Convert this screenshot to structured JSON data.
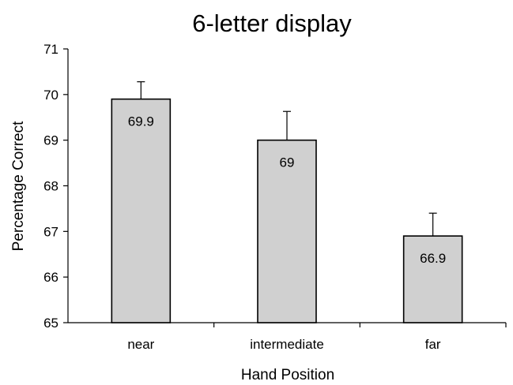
{
  "chart_data": {
    "type": "bar",
    "title": "6-letter display",
    "xlabel": "Hand Position",
    "ylabel": "Percentage Correct",
    "categories": [
      "near",
      "intermediate",
      "far"
    ],
    "values": [
      69.9,
      69,
      66.9
    ],
    "data_labels": [
      "69.9",
      "69",
      "66.9"
    ],
    "error_upper": [
      70.28,
      69.63,
      67.4
    ],
    "ylim": [
      65,
      71
    ],
    "yticks": [
      65,
      66,
      67,
      68,
      69,
      70,
      71
    ],
    "grid": false,
    "legend": "none",
    "bar_color": "#d0d0d0"
  }
}
